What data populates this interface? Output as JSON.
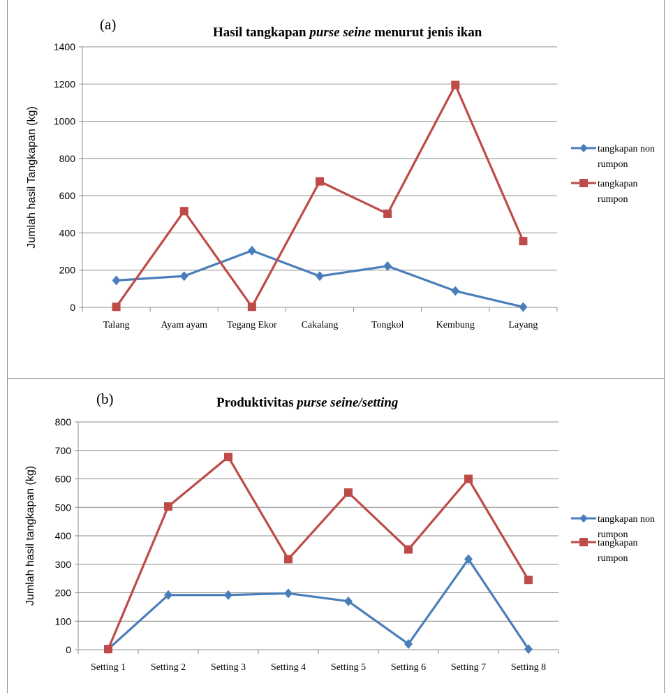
{
  "chart_data": [
    {
      "type": "line",
      "panel_label": "(a)",
      "title_parts": [
        {
          "text": "Hasil tangkapan ",
          "italic": false
        },
        {
          "text": "purse seine",
          "italic": true
        },
        {
          "text": " menurut  jenis ikan",
          "italic": false
        }
      ],
      "ylabel": "Jumlah hasil Tangkapan (kg)",
      "xlabel": "",
      "ylim": [
        0,
        1400
      ],
      "yticks": [
        0,
        200,
        400,
        600,
        800,
        1000,
        1200,
        1400
      ],
      "grid": true,
      "legend_position": "right",
      "categories": [
        "Talang",
        "Ayam ayam",
        "Tegang Ekor",
        "Cakalang",
        "Tongkol",
        "Kembung",
        "Layang"
      ],
      "series": [
        {
          "legend_lines": [
            "tangkapan non",
            "rumpon"
          ],
          "color": "#4a7ebb",
          "marker": "diamond",
          "values": [
            145,
            168,
            305,
            168,
            222,
            88,
            2
          ]
        },
        {
          "legend_lines": [
            "tangkapan",
            "rumpon"
          ],
          "color": "#be4b48",
          "marker": "square",
          "values": [
            3,
            517,
            3,
            677,
            503,
            1195,
            356
          ]
        }
      ]
    },
    {
      "type": "line",
      "panel_label": "(b)",
      "title_parts": [
        {
          "text": "Produktivitas  ",
          "italic": false
        },
        {
          "text": "purse seine/setting",
          "italic": true
        }
      ],
      "ylabel": "Jumlah hasil tangkapan (kg)",
      "xlabel": "",
      "ylim": [
        0,
        800
      ],
      "yticks": [
        0,
        100,
        200,
        300,
        400,
        500,
        600,
        700,
        800
      ],
      "grid": true,
      "legend_position": "right",
      "categories": [
        "Setting 1",
        "Setting 2",
        "Setting 3",
        "Setting 4",
        "Setting 5",
        "Setting 6",
        "Setting 7",
        "Setting 8"
      ],
      "series": [
        {
          "legend_lines": [
            "tangkapan non",
            "rumpon"
          ],
          "color": "#4a7ebb",
          "marker": "diamond",
          "values": [
            2,
            192,
            192,
            198,
            170,
            20,
            318,
            2
          ]
        },
        {
          "legend_lines": [
            "tangkapan",
            "rumpon"
          ],
          "color": "#be4b48",
          "marker": "square",
          "values": [
            2,
            503,
            677,
            318,
            552,
            352,
            600,
            245
          ]
        }
      ]
    }
  ]
}
